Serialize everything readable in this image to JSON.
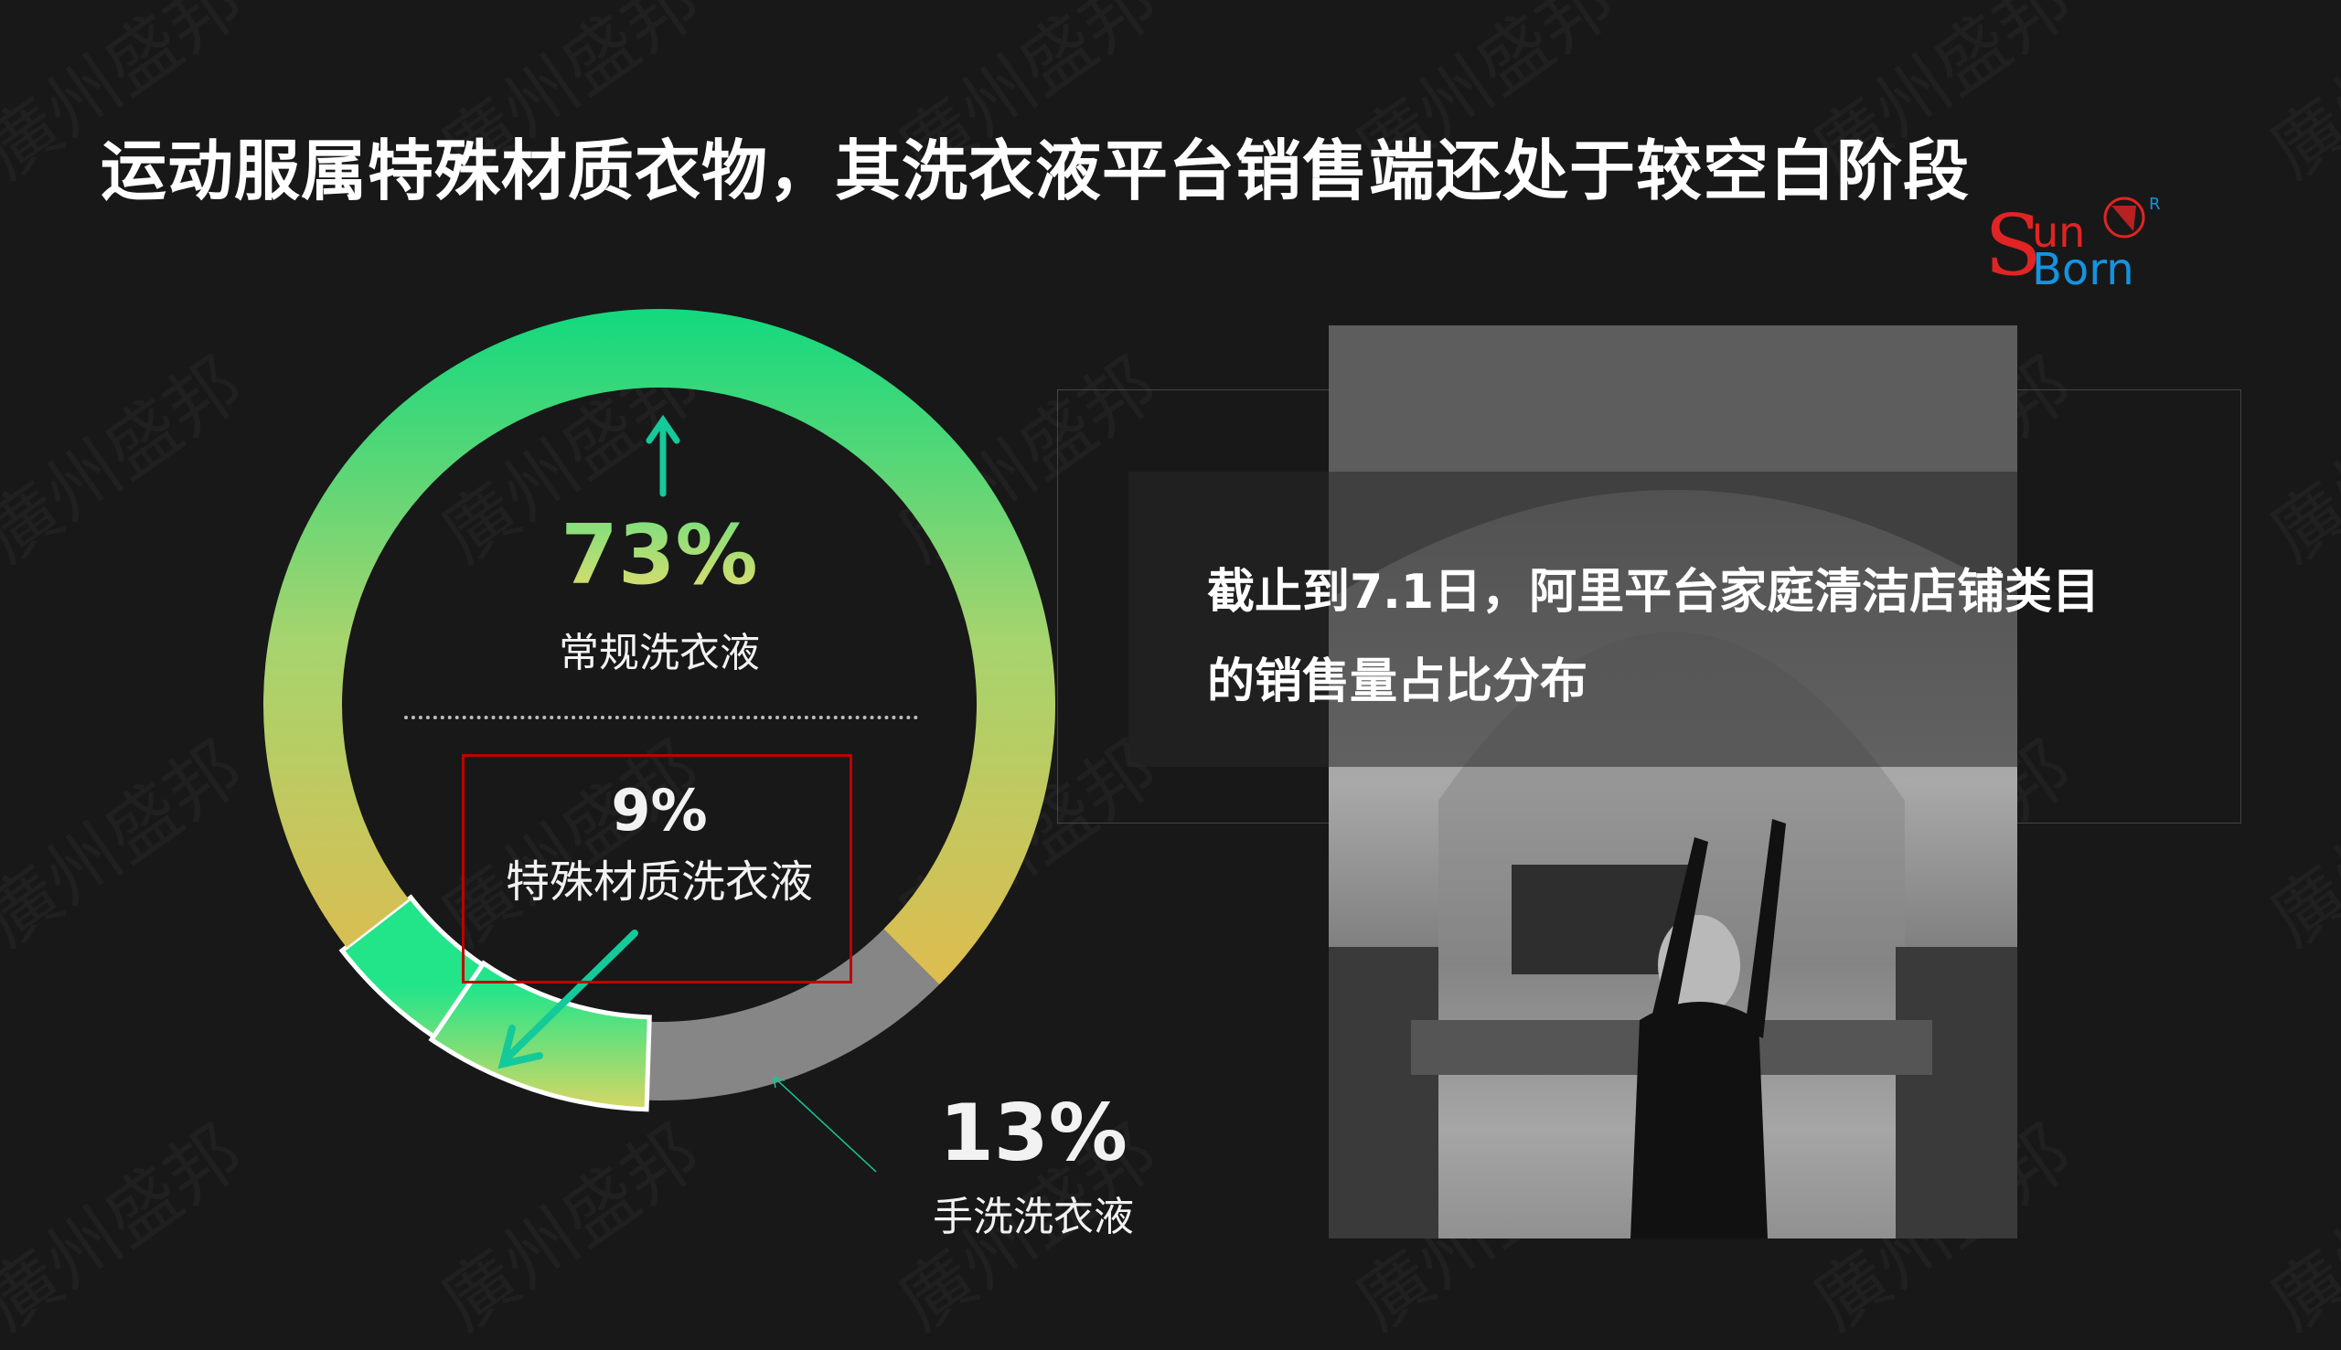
{
  "title": "运动服属特殊材质衣物，其洗衣液平台销售端还处于较空白阶段",
  "logo": {
    "s": "S",
    "un": "un",
    "born": "Born",
    "r": "R",
    "text": "SunBorn"
  },
  "watermark": "廣州盛邦",
  "info": {
    "line1": "截止到7.1日，阿里平台家庭清洁店铺类目",
    "line2": "的销售量占比分布"
  },
  "colors": {
    "green": "#12d97f",
    "yellow": "#e8c04f",
    "gray": "#868686",
    "red_box": "#c00000",
    "arrow": "#14c99a"
  },
  "chart_data": {
    "type": "pie",
    "style": "donut",
    "slices": [
      {
        "label": "常规洗衣液",
        "value": 73,
        "display": "73%"
      },
      {
        "label": "特殊材质洗衣液",
        "value": 9,
        "display": "9%"
      },
      {
        "label": "手洗洗衣液",
        "value": 13,
        "display": "13%"
      },
      {
        "label": "",
        "value": 5,
        "display": ""
      }
    ]
  }
}
